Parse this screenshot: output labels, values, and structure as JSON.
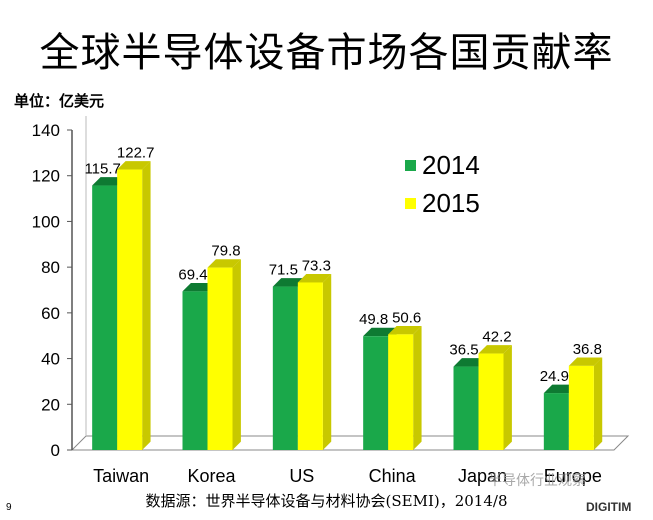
{
  "title": "全球半导体设备市场各国贡献率",
  "unit_label": "单位：亿美元",
  "source": "数据源：世界半导体设备与材料协会(SEMI)，2014/8",
  "page_number": "9",
  "watermark": "半导体行业观察",
  "brand": "DIGITIM",
  "colors": {
    "s2014": "#1aa84a",
    "s2015": "#ffff00"
  },
  "chart_data": {
    "type": "bar",
    "categories": [
      "Taiwan",
      "Korea",
      "US",
      "China",
      "Japan",
      "Europe"
    ],
    "series": [
      {
        "name": "2014",
        "values": [
          115.7,
          69.4,
          71.5,
          49.8,
          36.5,
          24.9
        ]
      },
      {
        "name": "2015",
        "values": [
          122.7,
          79.8,
          73.3,
          50.6,
          42.2,
          36.8
        ]
      }
    ],
    "ylim": [
      0,
      140
    ],
    "yticks": [
      "0",
      "20",
      "40",
      "60",
      "80",
      "100",
      "120",
      "140"
    ],
    "legend_position": "top-right",
    "grid": false
  }
}
